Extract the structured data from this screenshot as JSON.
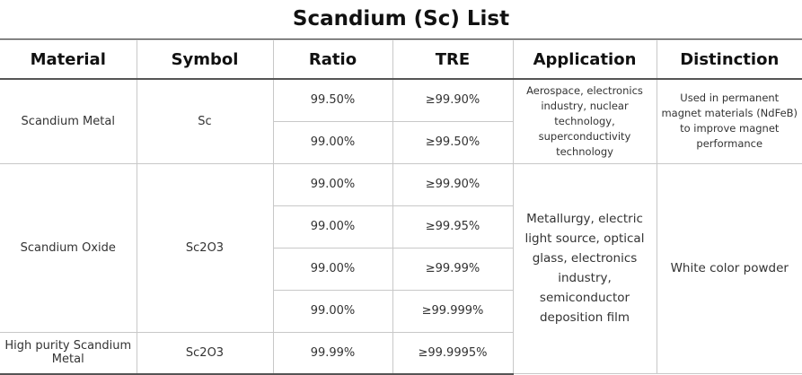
{
  "title": "Scandium (Sc) List",
  "headers": [
    "Material",
    "Symbol",
    "Ratio",
    "TRE",
    "Application",
    "Distinction"
  ],
  "groups": {
    "metal": {
      "material": "Scandium Metal",
      "symbol": "Sc",
      "application": "Aerospace, electronics industry, nuclear technology, superconductivity technology",
      "distinction": "Used in permanent magnet materials (NdFeB) to improve magnet performance",
      "rows": [
        {
          "ratio": "99.50%",
          "tre": "≥99.90%"
        },
        {
          "ratio": "99.00%",
          "tre": "≥99.50%"
        }
      ]
    },
    "oxide": {
      "material": "Scandium Oxide",
      "symbol": "Sc2O3",
      "application": "Metallurgy, electric light source, optical glass, electronics industry, semiconductor deposition film",
      "distinction": "White color powder",
      "rows": [
        {
          "ratio": "99.00%",
          "tre": "≥99.90%"
        },
        {
          "ratio": "99.00%",
          "tre": "≥99.95%"
        },
        {
          "ratio": "99.00%",
          "tre": "≥99.99%"
        },
        {
          "ratio": "99.00%",
          "tre": "≥99.999%"
        }
      ]
    },
    "high_purity": {
      "material": "High purity Scandium Metal",
      "symbol": "Sc2O3",
      "ratio": "99.99%",
      "tre": "≥99.9995%"
    }
  }
}
